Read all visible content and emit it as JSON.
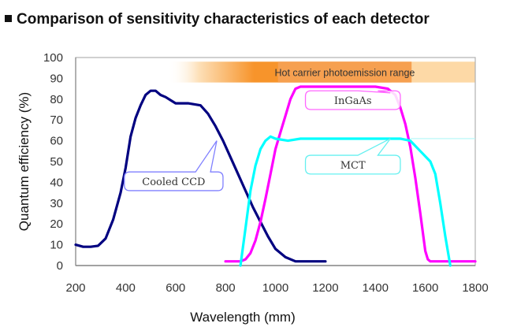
{
  "title": "Comparison of sensitivity characteristics of each detector",
  "chart_data": {
    "type": "line",
    "title": "Comparison of sensitivity characteristics of each detector",
    "xlabel": "Wavelength (mm)",
    "ylabel": "Quantum efficiency (%)",
    "xlim": [
      200,
      1800
    ],
    "ylim": [
      0,
      100
    ],
    "xticks": [
      "200",
      "400",
      "600",
      "800",
      "1000",
      "1200",
      "1400",
      "1600",
      "1800"
    ],
    "yticks": [
      "0",
      "10",
      "20",
      "30",
      "40",
      "50",
      "60",
      "70",
      "80",
      "90",
      "100"
    ],
    "grid": false,
    "band": {
      "label": "Hot carrier photoemission range",
      "x_start": 600,
      "x_end": 1800,
      "y_range": [
        88,
        98
      ],
      "colors": {
        "light": "#fdd9a6",
        "strong": "#f7942b",
        "label_box": "#f6a050"
      }
    },
    "series": [
      {
        "name": "Cooled CCD",
        "color": "#000080",
        "x": [
          200,
          230,
          260,
          290,
          320,
          350,
          380,
          400,
          420,
          440,
          460,
          480,
          500,
          520,
          540,
          560,
          600,
          650,
          700,
          730,
          760,
          790,
          820,
          850,
          880,
          910,
          940,
          970,
          1000,
          1040,
          1080,
          1120,
          1160,
          1200
        ],
        "y": [
          10,
          9,
          9,
          9.5,
          13,
          22,
          35,
          47,
          62,
          71,
          77,
          82,
          84,
          84,
          82,
          81,
          78,
          78,
          77,
          73,
          67,
          60,
          52,
          44,
          36,
          28,
          21,
          14,
          8,
          4,
          2,
          2,
          2,
          2
        ]
      },
      {
        "name": "InGaAs",
        "color": "#ff00ff",
        "x": [
          800,
          840,
          860,
          880,
          900,
          920,
          940,
          960,
          980,
          1000,
          1020,
          1040,
          1060,
          1080,
          1100,
          1200,
          1300,
          1400,
          1450,
          1480,
          1500,
          1520,
          1540,
          1560,
          1580,
          1600,
          1610,
          1620,
          1700,
          1800
        ],
        "y": [
          2,
          2,
          2,
          3,
          6,
          12,
          21,
          32,
          44,
          56,
          64,
          72,
          80,
          85,
          86,
          86,
          86,
          86,
          85,
          82,
          76,
          68,
          57,
          42,
          25,
          7,
          3,
          2,
          2,
          2
        ]
      },
      {
        "name": "MCT",
        "color": "#00ffff",
        "x": [
          860,
          880,
          900,
          920,
          940,
          960,
          980,
          1000,
          1050,
          1100,
          1200,
          1300,
          1400,
          1500,
          1540,
          1580,
          1620,
          1640,
          1660,
          1680,
          1700
        ],
        "y": [
          0,
          18,
          36,
          48,
          56,
          60,
          62,
          61,
          60,
          61,
          61,
          61,
          61,
          61,
          60,
          55,
          50,
          44,
          30,
          14,
          0
        ]
      }
    ],
    "reference_line": {
      "series": "MCT",
      "y": 61,
      "x_start": 1540,
      "x_end": 1800,
      "color": "#b0f8f8"
    },
    "annotations": [
      {
        "text": "Cooled CCD",
        "series": "Cooled CCD",
        "color": "#8080ff"
      },
      {
        "text": "InGaAs",
        "series": "InGaAs",
        "color": "#ff66ff"
      },
      {
        "text": "MCT",
        "series": "MCT",
        "color": "#66f0f0"
      }
    ]
  }
}
